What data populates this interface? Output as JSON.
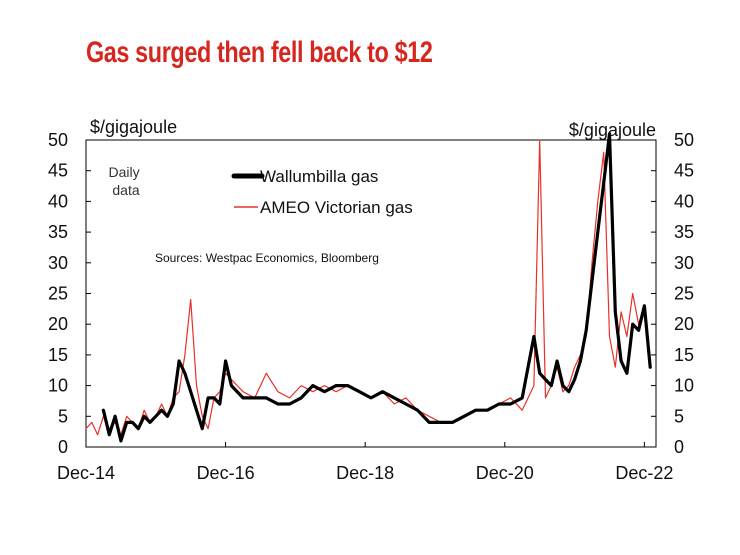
{
  "chart_data": {
    "type": "line",
    "title": "Gas surged then fell back to $12",
    "y_unit_left": "$/gigajoule",
    "y_unit_right": "$/gigajoule",
    "ylim": [
      0,
      50
    ],
    "yticks": [
      0,
      5,
      10,
      15,
      20,
      25,
      30,
      35,
      40,
      45,
      50
    ],
    "xlim": [
      "2014-12",
      "2023-02"
    ],
    "xticks": [
      {
        "x": "2014-12",
        "label": "Dec-14"
      },
      {
        "x": "2016-12",
        "label": "Dec-16"
      },
      {
        "x": "2018-12",
        "label": "Dec-18"
      },
      {
        "x": "2020-12",
        "label": "Dec-20"
      },
      {
        "x": "2022-12",
        "label": "Dec-22"
      }
    ],
    "annotation": "Daily data",
    "source": "Sources: Westpac Economics, Bloomberg",
    "grid": false,
    "legend_position": "top-center",
    "series": [
      {
        "name": "Wallumbilla gas",
        "color": "#000000",
        "x": [
          "2015-03",
          "2015-04",
          "2015-05",
          "2015-06",
          "2015-07",
          "2015-08",
          "2015-09",
          "2015-10",
          "2015-11",
          "2015-12",
          "2016-01",
          "2016-02",
          "2016-03",
          "2016-04",
          "2016-05",
          "2016-06",
          "2016-07",
          "2016-08",
          "2016-09",
          "2016-10",
          "2016-11",
          "2016-12",
          "2017-01",
          "2017-03",
          "2017-05",
          "2017-07",
          "2017-09",
          "2017-11",
          "2018-01",
          "2018-03",
          "2018-05",
          "2018-07",
          "2018-09",
          "2018-11",
          "2019-01",
          "2019-03",
          "2019-05",
          "2019-07",
          "2019-09",
          "2019-11",
          "2020-01",
          "2020-03",
          "2020-05",
          "2020-07",
          "2020-09",
          "2020-11",
          "2021-01",
          "2021-03",
          "2021-05",
          "2021-06",
          "2021-07",
          "2021-08",
          "2021-09",
          "2021-10",
          "2021-11",
          "2021-12",
          "2022-01",
          "2022-02",
          "2022-03",
          "2022-04",
          "2022-05",
          "2022-06",
          "2022-07",
          "2022-08",
          "2022-09",
          "2022-10",
          "2022-11",
          "2022-12",
          "2023-01"
        ],
        "values": [
          6,
          2,
          5,
          1,
          4,
          4,
          3,
          5,
          4,
          5,
          6,
          5,
          7,
          14,
          12,
          9,
          6,
          3,
          8,
          8,
          7,
          14,
          10,
          8,
          8,
          8,
          7,
          7,
          8,
          10,
          9,
          10,
          10,
          9,
          8,
          9,
          8,
          7,
          6,
          4,
          4,
          4,
          5,
          6,
          6,
          7,
          7,
          8,
          18,
          12,
          11,
          10,
          14,
          10,
          9,
          11,
          14,
          19,
          27,
          35,
          43,
          51,
          22,
          14,
          12,
          20,
          19,
          23,
          13
        ]
      },
      {
        "name": "AMEO Victorian gas",
        "color": "#e8302a",
        "x": [
          "2014-12",
          "2015-01",
          "2015-02",
          "2015-03",
          "2015-04",
          "2015-05",
          "2015-06",
          "2015-07",
          "2015-08",
          "2015-09",
          "2015-10",
          "2015-11",
          "2015-12",
          "2016-01",
          "2016-02",
          "2016-03",
          "2016-04",
          "2016-05",
          "2016-06",
          "2016-07",
          "2016-08",
          "2016-09",
          "2016-10",
          "2016-11",
          "2016-12",
          "2017-01",
          "2017-03",
          "2017-05",
          "2017-07",
          "2017-09",
          "2017-11",
          "2018-01",
          "2018-03",
          "2018-05",
          "2018-07",
          "2018-09",
          "2018-11",
          "2019-01",
          "2019-03",
          "2019-05",
          "2019-07",
          "2019-09",
          "2019-11",
          "2020-01",
          "2020-03",
          "2020-05",
          "2020-07",
          "2020-09",
          "2020-11",
          "2021-01",
          "2021-03",
          "2021-05",
          "2021-06",
          "2021-07",
          "2021-08",
          "2021-09",
          "2021-10",
          "2021-11",
          "2021-12",
          "2022-01",
          "2022-02",
          "2022-03",
          "2022-04",
          "2022-05",
          "2022-06",
          "2022-07",
          "2022-08",
          "2022-09",
          "2022-10",
          "2022-11",
          "2022-12",
          "2023-01"
        ],
        "values": [
          3,
          4,
          2,
          5,
          3,
          4,
          2,
          5,
          4,
          3,
          6,
          4,
          5,
          7,
          5,
          8,
          9,
          15,
          24,
          10,
          5,
          3,
          8,
          9,
          12,
          11,
          9,
          8,
          12,
          9,
          8,
          10,
          9,
          10,
          9,
          10,
          9,
          8,
          9,
          7,
          8,
          6,
          5,
          4,
          4,
          5,
          6,
          6,
          7,
          8,
          6,
          10,
          50,
          8,
          10,
          13,
          9,
          10,
          13,
          15,
          18,
          30,
          40,
          48,
          18,
          13,
          22,
          18,
          25,
          20,
          23,
          14
        ]
      }
    ]
  }
}
